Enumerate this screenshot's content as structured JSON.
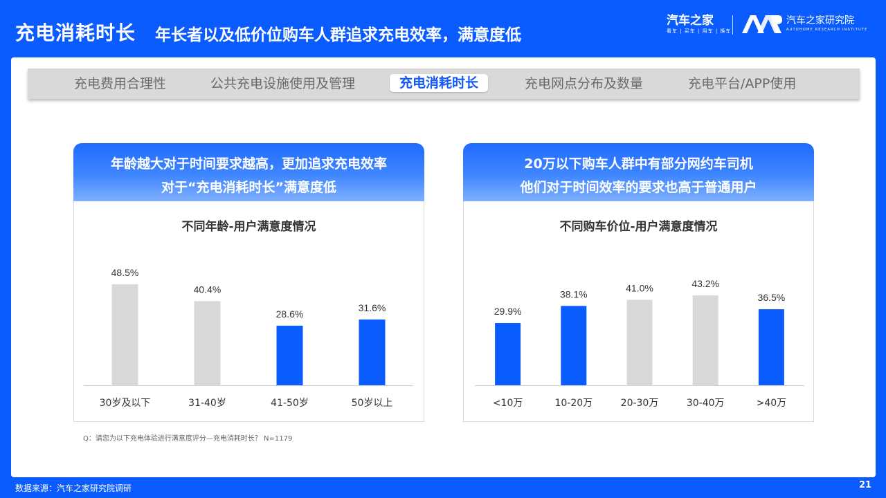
{
  "header": {
    "title": "充电消耗时长",
    "subtitle": "年长者以及低价位购车人群追求充电效率，满意度低",
    "brand1_name": "汽车之家",
    "brand1_tagline": "看车 | 买车 | 用车 | 换车",
    "brand2_name": "汽车之家研究院",
    "brand2_en": "AUTOHOME  RESEARCH  INSTITUTE"
  },
  "tabs": [
    {
      "label": "充电费用合理性"
    },
    {
      "label": "公共充电设施使用及管理"
    },
    {
      "label": "充电消耗时长"
    },
    {
      "label": "充电网点分布及数量"
    },
    {
      "label": "充电平台/APP使用"
    }
  ],
  "active_tab": 2,
  "cards": [
    {
      "header_line1": "年龄越大对于时间要求越高，更加追求充电效率",
      "header_line2": "对于“充电消耗时长”满意度低"
    },
    {
      "header_line1": "20万以下购车人群中有部分网约车司机",
      "header_line2": "他们对于时间效率的要求也高于普通用户"
    }
  ],
  "colors": {
    "blue": "#0A5CFF",
    "grey": "#d9d9d9"
  },
  "chart_data": [
    {
      "type": "bar",
      "title": "不同年龄-用户满意度情况",
      "categories": [
        "30岁及以下",
        "31-40岁",
        "41-50岁",
        "50岁以上"
      ],
      "values": [
        48.5,
        40.4,
        28.6,
        31.6
      ],
      "labels": [
        "48.5%",
        "40.4%",
        "28.6%",
        "31.6%"
      ],
      "highlight": [
        false,
        false,
        true,
        true
      ],
      "ylim": [
        0,
        50
      ]
    },
    {
      "type": "bar",
      "title": "不同购车价位-用户满意度情况",
      "categories": [
        "<10万",
        "10-20万",
        "20-30万",
        "30-40万",
        ">40万"
      ],
      "values": [
        29.9,
        38.1,
        41.0,
        43.2,
        36.5
      ],
      "labels": [
        "29.9%",
        "38.1%",
        "41.0%",
        "43.2%",
        "36.5%"
      ],
      "highlight": [
        true,
        true,
        false,
        false,
        true
      ],
      "ylim": [
        0,
        50
      ]
    }
  ],
  "footer": {
    "note": "Q：请您为以下充电体验进行满意度评分—充电消耗时长？ N=1179",
    "source": "数据来源：汽车之家研究院调研",
    "page": "21"
  }
}
